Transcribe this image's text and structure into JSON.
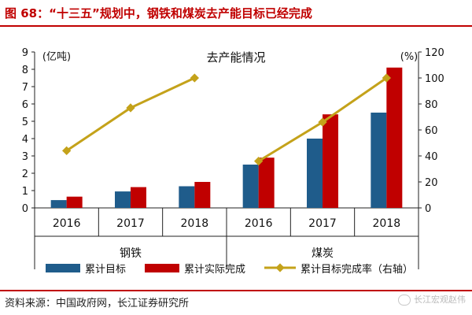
{
  "figure": {
    "title": "图 68：“十三五”规划中，钢铁和煤炭去产能目标已经完成",
    "source": "资料来源：中国政府网，长江证券研究所",
    "watermark": "长江宏观赵伟"
  },
  "colors": {
    "title_red": "#c00000",
    "target_blue": "#1f5c8b",
    "actual_red": "#c00000",
    "rate_gold": "#c4a21a"
  },
  "chart_data": {
    "type": "bar",
    "title": "去产能情况",
    "ylabel": "(亿吨)",
    "y2label": "(%)",
    "ylim": [
      0,
      9
    ],
    "y2lim": [
      0,
      120
    ],
    "yticks": [
      "0",
      "1",
      "2",
      "3",
      "4",
      "5",
      "6",
      "7",
      "8",
      "9"
    ],
    "y2ticks": [
      "0",
      "20",
      "40",
      "60",
      "80",
      "100",
      "120"
    ],
    "categories": [
      "2016",
      "2017",
      "2018",
      "2016",
      "2017",
      "2018"
    ],
    "groups": [
      "钢铁",
      "煤炭"
    ],
    "series": [
      {
        "name": "累计目标",
        "kind": "bar",
        "axis": "left",
        "values": [
          0.45,
          0.95,
          1.25,
          2.5,
          4.0,
          5.5
        ]
      },
      {
        "name": "累计实际完成",
        "kind": "bar",
        "axis": "left",
        "values": [
          0.65,
          1.2,
          1.5,
          2.9,
          5.4,
          8.1
        ]
      },
      {
        "name": "累计目标完成率（右轴）",
        "kind": "line",
        "axis": "right",
        "values": [
          44,
          77,
          100,
          36,
          66,
          100
        ]
      }
    ],
    "grid": false,
    "legend": "bottom"
  }
}
